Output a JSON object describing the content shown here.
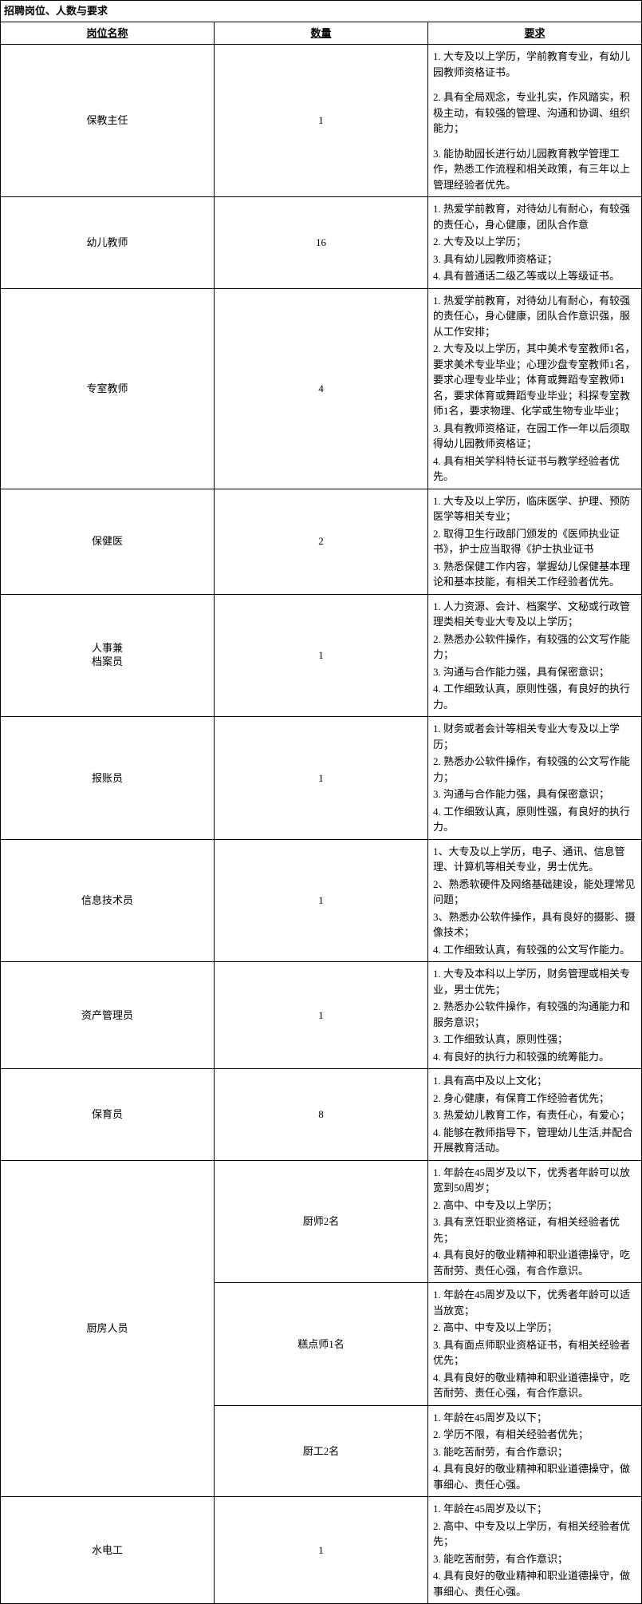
{
  "title": "招聘岗位、人数与要求",
  "headers": {
    "position": "岗位名称",
    "quantity": "数量",
    "requirements": "要求"
  },
  "rows": [
    {
      "position": "保教主任",
      "quantity": "1",
      "reqs": [
        "1. 大专及以上学历，学前教育专业，有幼儿园教师资格证书。",
        "2. 具有全局观念，专业扎实，作风踏实，积极主动，有较强的管理、沟通和协调、组织能力；",
        "3. 能协助园长进行幼儿园教育教学管理工作，熟悉工作流程和相关政策，有三年以上管理经验者优先。"
      ],
      "spaced": true
    },
    {
      "position": "幼儿教师",
      "quantity": "16",
      "reqs": [
        "1. 热爱学前教育，对待幼儿有耐心，有较强的责任心，身心健康，团队合作意",
        "2. 大专及以上学历；",
        "3. 具有幼儿园教师资格证；",
        "4. 具有普通话二级乙等或以上等级证书。"
      ]
    },
    {
      "position": "专室教师",
      "quantity": "4",
      "reqs": [
        "1. 热爱学前教育，对待幼儿有耐心，有较强的责任心，身心健康，团队合作意识强，服从工作安排；",
        "2. 大专及以上学历，其中美术专室教师1名，要求美术专业毕业；心理沙盘专室教师1名，要求心理专业毕业；体育或舞蹈专室教师1名，要求体育或舞蹈专业毕业；科探专室教师1名，要求物理、化学或生物专业毕业；",
        "3. 具有教师资格证，在园工作一年以后须取得幼儿园教师资格证；",
        "4. 具有相关学科特长证书与教学经验者优先。"
      ]
    },
    {
      "position": "保健医",
      "quantity": "2",
      "reqs": [
        "1. 大专及以上学历，临床医学、护理、预防医学等相关专业；",
        "2. 取得卫生行政部门颁发的《医师执业证书》，护士应当取得《护士执业证书",
        "3. 熟悉保健工作内容，掌握幼儿保健基本理论和基本技能，有相关工作经验者优先。"
      ]
    },
    {
      "position_html": "人事兼<br>档案员",
      "quantity": "1",
      "reqs": [
        "1. 人力资源、会计、档案学、文秘或行政管理类相关专业大专及以上学历；",
        "2. 熟悉办公软件操作，有较强的公文写作能力；",
        "3. 沟通与合作能力强，具有保密意识；",
        "4. 工作细致认真，原则性强，有良好的执行力。"
      ]
    },
    {
      "position": "报账员",
      "quantity": "1",
      "reqs": [
        "1.  财务或者会计等相关专业大专及以上学历；",
        "2.  熟悉办公软件操作，有较强的公文写作能力；",
        "3.  沟通与合作能力强，具有保密意识；",
        "4.  工作细致认真，原则性强，有良好的执行力。"
      ]
    },
    {
      "position": "信息技术员",
      "quantity": "1",
      "reqs": [
        "1、大专及以上学历，电子、通讯、信息管理、计算机等相关专业，男士优先。",
        "2、熟悉软硬件及网络基础建设，能处理常见问题；",
        "3、熟悉办公软件操作，具有良好的摄影、摄像技术；",
        "4.  工作细致认真，有较强的公文写作能力。"
      ]
    },
    {
      "position": "资产管理员",
      "quantity": "1",
      "reqs": [
        "1. 大专及本科以上学历，财务管理或相关专业，男士优先；",
        "2. 熟悉办公软件操作，有较强的沟通能力和服务意识；",
        "3. 工作细致认真，原则性强；",
        "4. 有良好的执行力和较强的统筹能力。"
      ]
    },
    {
      "position": "保育员",
      "quantity": "8",
      "reqs": [
        "1. 具有高中及以上文化；",
        "2. 身心健康，有保育工作经验者优先；",
        "3. 热爱幼儿教育工作，有责任心，有爱心；",
        "4. 能够在教师指导下，管理幼儿生活,并配合开展教育活动。"
      ]
    }
  ],
  "kitchen": {
    "position": "厨房人员",
    "sub": [
      {
        "qty": "厨师2名",
        "reqs": [
          "1. 年龄在45周岁及以下，优秀者年龄可以放宽到50周岁；",
          "2. 高中、中专及以上学历；",
          "3. 具有烹饪职业资格证，有相关经验者优先；",
          "4. 具有良好的敬业精神和职业道德操守，吃苦耐劳、责任心强，有合作意识。"
        ]
      },
      {
        "qty": "糕点师1名",
        "reqs": [
          "1. 年龄在45周岁及以下，优秀者年龄可以适当放宽；",
          "2. 高中、中专及以上学历；",
          "3. 具有面点师职业资格证书，有相关经验者优先；",
          "4. 具有良好的敬业精神和职业道德操守，吃苦耐劳、责任心强，有合作意识。"
        ]
      },
      {
        "qty": "厨工2名",
        "reqs": [
          "1. 年龄在45周岁及以下；",
          "2. 学历不限，有相关经验者优先；",
          "3. 能吃苦耐劳，有合作意识；",
          "4. 具有良好的敬业精神和职业道德操守，做事细心、责任心强。"
        ]
      }
    ]
  },
  "electrician": {
    "position": "水电工",
    "quantity": "1",
    "reqs": [
      "1. 年龄在45周岁及以下；",
      "2. 高中、中专及以上学历，有相关经验者优先；",
      "3. 能吃苦耐劳，有合作意识；",
      "4. 具有良好的敬业精神和职业道德操守，做事细心、责任心强。"
    ]
  }
}
